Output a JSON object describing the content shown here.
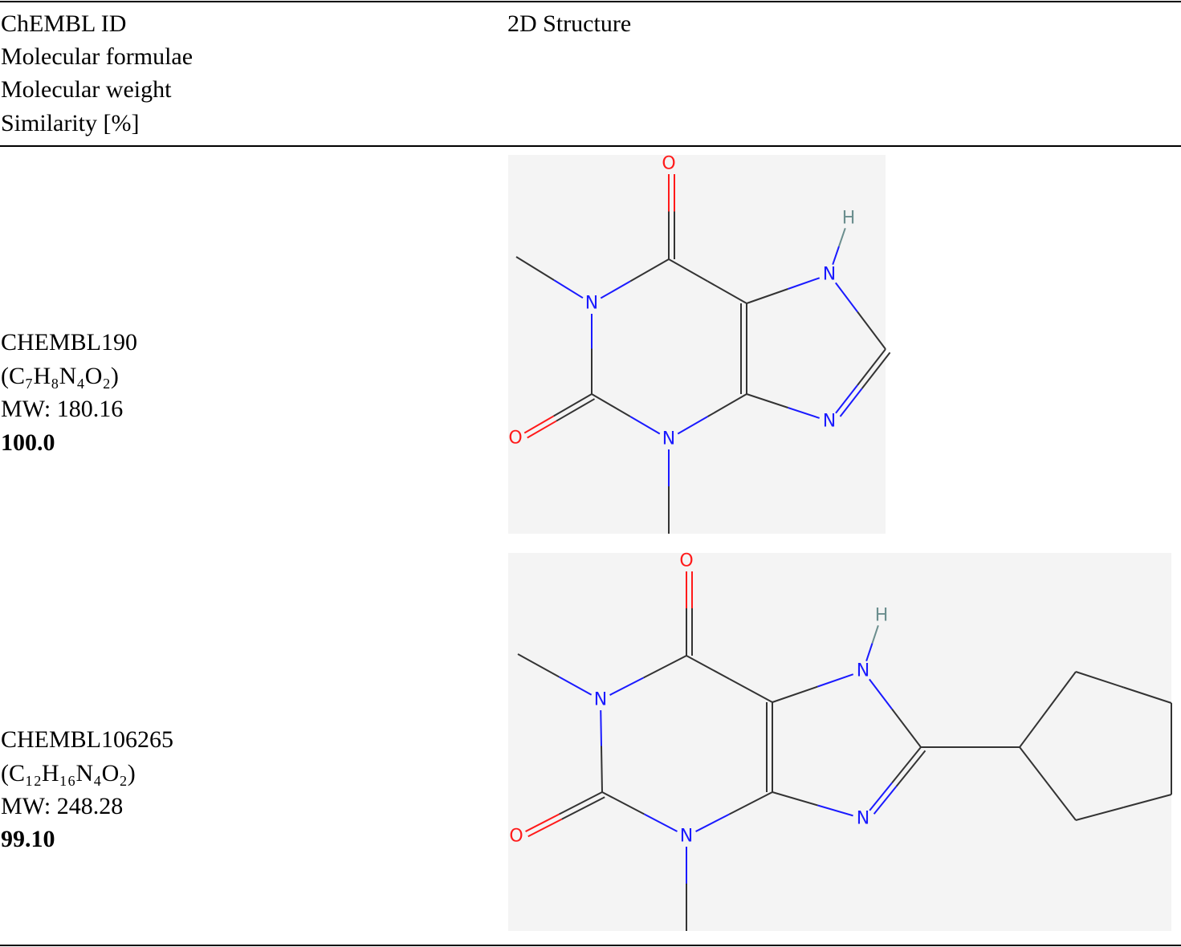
{
  "table": {
    "header": {
      "info": [
        "ChEMBL ID",
        "Molecular formulae",
        "Molecular weight",
        "Similarity [%]"
      ],
      "structure": "2D Structure"
    },
    "rows": [
      {
        "id": "CHEMBL190",
        "formula": "(C₇H₈N₄O₂)",
        "weight": "MW: 180.16",
        "similarity": "100.0",
        "atoms": [
          "O",
          "N",
          "O",
          "N",
          "N",
          "H",
          "N"
        ]
      },
      {
        "id": "CHEMBL106265",
        "formula": "(C₁₂H₁₆N₄O₂)",
        "weight": "MW: 248.28",
        "similarity": "99.10",
        "atoms": [
          "O",
          "N",
          "O",
          "N",
          "N",
          "H",
          "N"
        ]
      }
    ]
  }
}
